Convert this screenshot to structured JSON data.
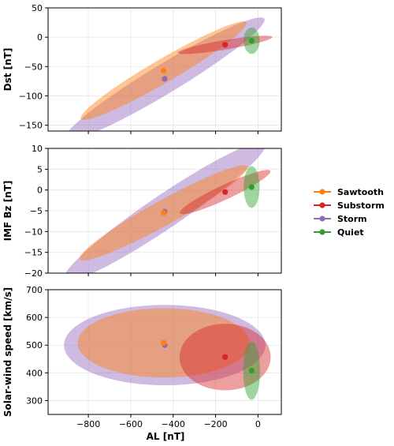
{
  "chart_data": {
    "type": "scatter",
    "xlabel": "AL [nT]",
    "x_ticks": [
      -800,
      -600,
      -400,
      -200,
      0
    ],
    "xlim": [
      -990,
      110
    ],
    "legend": {
      "placement": "right",
      "entries": [
        {
          "name": "Sawtooth",
          "color": "#ff7f0e"
        },
        {
          "name": "Substorm",
          "color": "#d62728"
        },
        {
          "name": "Storm",
          "color": "#9467bd"
        },
        {
          "name": "Quiet",
          "color": "#2ca02c"
        }
      ]
    },
    "grid": true,
    "panels": [
      {
        "ylabel": "Dst [nT]",
        "ylim": [
          -160,
          50
        ],
        "y_ticks": [
          -150,
          -100,
          -50,
          0,
          50
        ],
        "series": [
          {
            "name": "Storm",
            "color": "#9467bd",
            "point": [
              -440,
              -71
            ],
            "ellipse": {
              "center": [
                -440,
                -71
              ],
              "width": 1000,
              "height": 100,
              "angle": 20
            }
          },
          {
            "name": "Sawtooth",
            "color": "#ff7f0e",
            "point": [
              -445,
              -57
            ],
            "ellipse": {
              "center": [
                -445,
                -57
              ],
              "width": 830,
              "height": 80,
              "angle": 20
            }
          },
          {
            "name": "Substorm",
            "color": "#d62728",
            "point": [
              -155,
              -13
            ],
            "ellipse": {
              "center": [
                -155,
                -13
              ],
              "width": 450,
              "height": 32,
              "angle": 8
            }
          },
          {
            "name": "Quiet",
            "color": "#2ca02c",
            "point": [
              -30,
              -6
            ],
            "ellipse": {
              "center": [
                -30,
                -6
              ],
              "width": 75,
              "height": 45,
              "angle": 90
            }
          }
        ]
      },
      {
        "ylabel": "IMF Bz [nT]",
        "ylim": [
          -20,
          10
        ],
        "y_ticks": [
          -20,
          -15,
          -10,
          -5,
          0,
          5,
          10
        ],
        "series": [
          {
            "name": "Storm",
            "color": "#9467bd",
            "point": [
              -440,
              -5.2
            ],
            "ellipse": {
              "center": [
                -440,
                -5.2
              ],
              "width": 1010,
              "height": 16,
              "angle": 20
            }
          },
          {
            "name": "Sawtooth",
            "color": "#ff7f0e",
            "point": [
              -445,
              -5.5
            ],
            "ellipse": {
              "center": [
                -445,
                -5.5
              ],
              "width": 830,
              "height": 12,
              "angle": 18
            }
          },
          {
            "name": "Substorm",
            "color": "#d62728",
            "point": [
              -155,
              -0.5
            ],
            "ellipse": {
              "center": [
                -155,
                -0.5
              ],
              "width": 440,
              "height": 7,
              "angle": 14
            }
          },
          {
            "name": "Quiet",
            "color": "#2ca02c",
            "point": [
              -30,
              0.7
            ],
            "ellipse": {
              "center": [
                -30,
                0.7
              ],
              "width": 75,
              "height": 10,
              "angle": 90
            }
          }
        ]
      },
      {
        "ylabel": "Solar-wind speed [km/s]",
        "ylim": [
          250,
          700
        ],
        "y_ticks": [
          300,
          400,
          500,
          600,
          700
        ],
        "series": [
          {
            "name": "Storm",
            "color": "#9467bd",
            "point": [
              -440,
              500
            ],
            "ellipse": {
              "center": [
                -440,
                500
              ],
              "width": 950,
              "height": 290,
              "angle": 0
            }
          },
          {
            "name": "Sawtooth",
            "color": "#ff7f0e",
            "point": [
              -445,
              508
            ],
            "ellipse": {
              "center": [
                -445,
                508
              ],
              "width": 810,
              "height": 250,
              "angle": 0
            }
          },
          {
            "name": "Substorm",
            "color": "#d62728",
            "point": [
              -155,
              457
            ],
            "ellipse": {
              "center": [
                -155,
                457
              ],
              "width": 430,
              "height": 240,
              "angle": 0
            }
          },
          {
            "name": "Quiet",
            "color": "#2ca02c",
            "point": [
              -30,
              408
            ],
            "ellipse": {
              "center": [
                -30,
                408
              ],
              "width": 80,
              "height": 210,
              "angle": 0
            }
          }
        ]
      }
    ]
  }
}
